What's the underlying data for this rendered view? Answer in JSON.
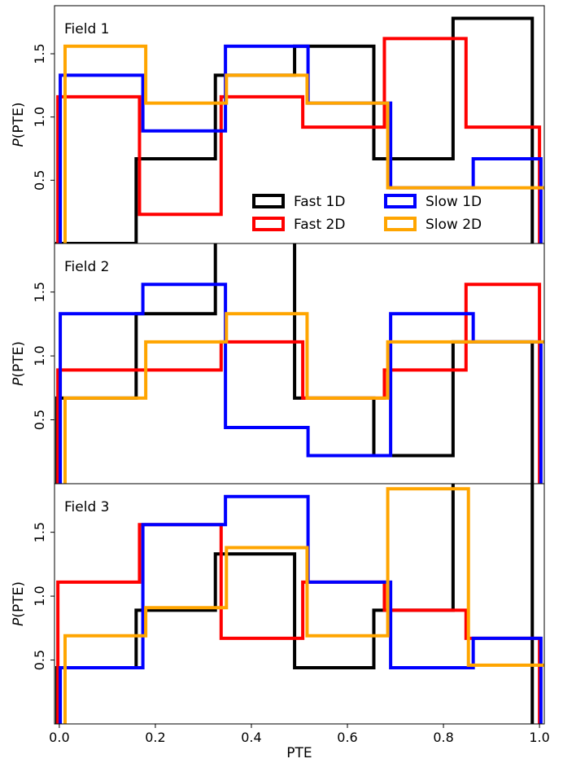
{
  "chart_data": {
    "type": "histogram-step",
    "xlabel": "PTE",
    "xlim": [
      -0.01,
      1.01
    ],
    "xticks": [
      0.0,
      0.2,
      0.4,
      0.6,
      0.8,
      1.0
    ],
    "xtick_labels": [
      "0.0",
      "0.2",
      "0.4",
      "0.6",
      "0.8",
      "1.0"
    ],
    "ylabel": "P(PTE)",
    "ylabel_italic": "P",
    "ylabel_rest": "(PTE)",
    "yticks": [
      0.5,
      1.0,
      1.5
    ],
    "ytick_labels": [
      "0.5",
      "1.0",
      "1.5"
    ],
    "legend": {
      "placement": "lower-right of first panel",
      "entries": [
        {
          "label": "Fast 1D",
          "color": "#000000"
        },
        {
          "label": "Slow 1D",
          "color": "#0000ff"
        },
        {
          "label": "Fast 2D",
          "color": "#ff0000"
        },
        {
          "label": "Slow 2D",
          "color": "#ffa500"
        }
      ]
    },
    "series_order": [
      "Fast 1D",
      "Fast 2D",
      "Slow 1D",
      "Slow 2D"
    ],
    "colors": {
      "Fast 1D": "#000000",
      "Fast 2D": "#ff0000",
      "Slow 1D": "#0000ff",
      "Slow 2D": "#ffa500"
    },
    "panels": [
      {
        "label": "Field 1",
        "ylim": [
          0,
          1.88
        ],
        "series": [
          {
            "name": "Fast 1D",
            "edges": [
              -0.005,
              0.16,
              0.325,
              0.49,
              0.655,
              0.82,
              0.985
            ],
            "values": [
              0.0,
              0.67,
              1.33,
              1.56,
              0.67,
              1.78
            ]
          },
          {
            "name": "Fast 2D",
            "edges": [
              -0.003,
              0.167,
              0.337,
              0.507,
              0.677,
              0.847,
              1.0
            ],
            "values": [
              1.16,
              0.23,
              1.16,
              0.92,
              1.62,
              0.92
            ]
          },
          {
            "name": "Slow 1D",
            "edges": [
              0.002,
              0.174,
              0.346,
              0.518,
              0.69,
              0.862,
              1.003
            ],
            "values": [
              1.33,
              0.89,
              1.56,
              1.11,
              0.44,
              0.67
            ]
          },
          {
            "name": "Slow 2D",
            "edges": [
              0.012,
              0.18,
              0.348,
              0.516,
              0.684,
              0.852,
              1.02
            ],
            "values": [
              1.56,
              1.11,
              1.33,
              1.11,
              0.44,
              0.44
            ]
          }
        ]
      },
      {
        "label": "Field 2",
        "ylim": [
          0,
          1.88
        ],
        "series": [
          {
            "name": "Fast 1D",
            "edges": [
              -0.005,
              0.16,
              0.325,
              0.49,
              0.655,
              0.82,
              0.985
            ],
            "values": [
              0.67,
              1.33,
              2.0,
              0.67,
              0.22,
              1.11
            ]
          },
          {
            "name": "Fast 2D",
            "edges": [
              -0.003,
              0.167,
              0.337,
              0.507,
              0.677,
              0.847,
              1.0
            ],
            "values": [
              0.89,
              0.89,
              1.11,
              0.67,
              0.89,
              1.56
            ]
          },
          {
            "name": "Slow 1D",
            "edges": [
              0.002,
              0.174,
              0.346,
              0.518,
              0.69,
              0.862,
              1.003
            ],
            "values": [
              1.33,
              1.56,
              0.44,
              0.22,
              1.33,
              1.11
            ]
          },
          {
            "name": "Slow 2D",
            "edges": [
              0.012,
              0.18,
              0.348,
              0.516,
              0.684,
              0.852,
              1.02
            ],
            "values": [
              0.67,
              1.11,
              1.33,
              0.67,
              1.11,
              1.11
            ]
          }
        ]
      },
      {
        "label": "Field 3",
        "ylim": [
          0,
          1.88
        ],
        "series": [
          {
            "name": "Fast 1D",
            "edges": [
              -0.005,
              0.16,
              0.325,
              0.49,
              0.655,
              0.82,
              0.985
            ],
            "values": [
              0.44,
              0.89,
              1.33,
              0.44,
              0.89,
              2.0
            ]
          },
          {
            "name": "Fast 2D",
            "edges": [
              -0.003,
              0.167,
              0.337,
              0.507,
              0.677,
              0.847,
              1.0
            ],
            "values": [
              1.11,
              1.56,
              0.67,
              1.11,
              0.89,
              0.67
            ]
          },
          {
            "name": "Slow 1D",
            "edges": [
              0.002,
              0.174,
              0.346,
              0.518,
              0.69,
              0.862,
              1.003
            ],
            "values": [
              0.44,
              1.56,
              1.78,
              1.11,
              0.44,
              0.67
            ]
          },
          {
            "name": "Slow 2D",
            "edges": [
              0.012,
              0.18,
              0.348,
              0.516,
              0.684,
              0.852,
              1.02
            ],
            "values": [
              0.69,
              0.91,
              1.38,
              0.69,
              1.84,
              0.46
            ]
          }
        ]
      }
    ]
  }
}
